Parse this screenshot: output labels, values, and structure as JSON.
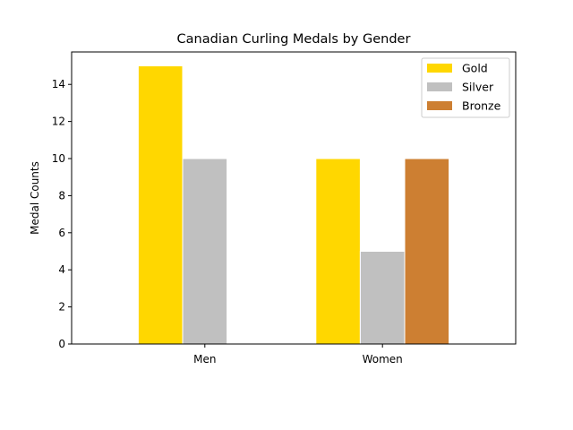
{
  "chart_data": {
    "type": "bar",
    "title": "Canadian Curling Medals by Gender",
    "xlabel": "",
    "ylabel": "Medal Counts",
    "categories": [
      "Men",
      "Women"
    ],
    "series": [
      {
        "name": "Gold",
        "color": "#FFD700",
        "values": [
          15,
          10
        ]
      },
      {
        "name": "Silver",
        "color": "#C0C0C0",
        "values": [
          10,
          5
        ]
      },
      {
        "name": "Bronze",
        "color": "#CD7F32",
        "values": [
          0,
          10
        ]
      }
    ],
    "ylim": [
      0,
      15.75
    ],
    "yticks": [
      0,
      2,
      4,
      6,
      8,
      10,
      12,
      14
    ],
    "grid": false,
    "legend_position": "top-right"
  }
}
